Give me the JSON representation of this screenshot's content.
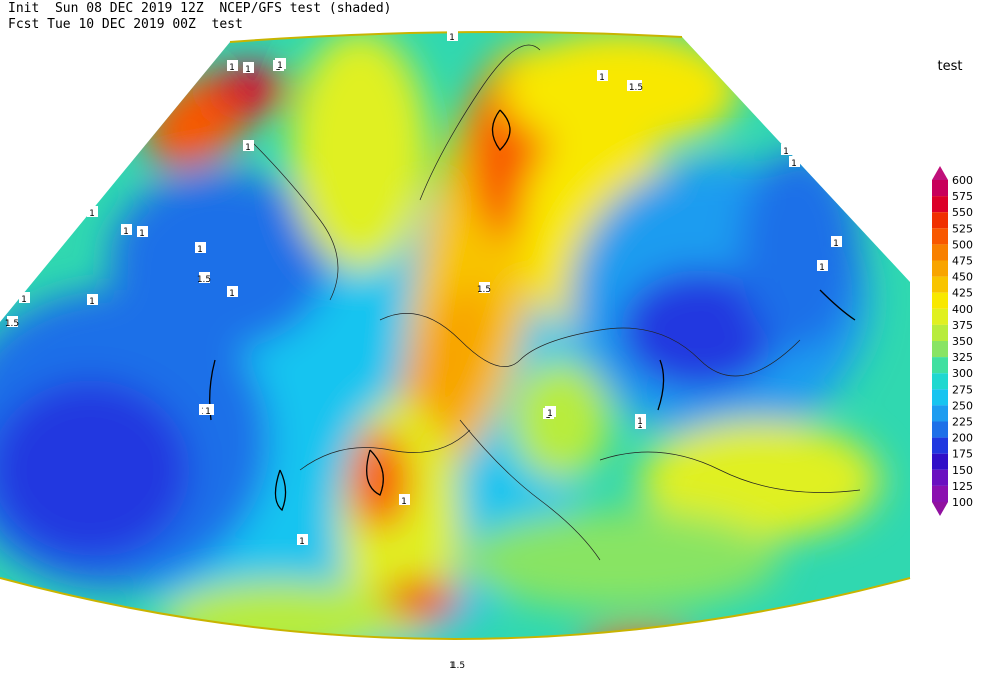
{
  "header": {
    "line1": "Init  Sun 08 DEC 2019 12Z  NCEP/GFS test (shaded)",
    "line2": "Fcst Tue 10 DEC 2019 00Z  test"
  },
  "legend": {
    "title": "test",
    "levels": [
      600,
      575,
      550,
      525,
      500,
      475,
      450,
      425,
      400,
      375,
      350,
      325,
      300,
      275,
      250,
      225,
      200,
      175,
      150,
      125,
      100
    ],
    "colors": [
      "#c0107a",
      "#c8005a",
      "#dc0028",
      "#f03000",
      "#f85800",
      "#f88000",
      "#f8a400",
      "#f8c400",
      "#f8e800",
      "#e0f020",
      "#b8ec3c",
      "#88e464",
      "#40e0a0",
      "#20d8d0",
      "#18c4f0",
      "#1e9cf0",
      "#1e70e8",
      "#2038e0",
      "#3010c8",
      "#6a10c0",
      "#8a10b0",
      "#9010a0"
    ]
  },
  "contour_labels": [
    "1",
    "1",
    "1",
    "1",
    "1",
    "1",
    "1",
    "1",
    "1.5",
    "1",
    "1",
    "1",
    "1",
    "1.5",
    "1",
    "1",
    "1",
    "1",
    "1.5",
    "1",
    "1",
    "1",
    "1",
    "1",
    "1",
    "1",
    "1",
    "1",
    "1",
    "1.5",
    "1",
    "1.5",
    "1",
    "1.5"
  ]
}
